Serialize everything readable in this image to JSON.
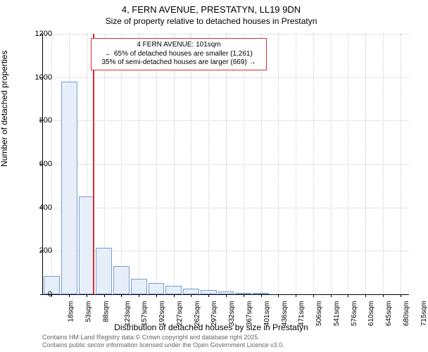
{
  "title": "4, FERN AVENUE, PRESTATYN, LL19 9DN",
  "subtitle": "Size of property relative to detached houses in Prestatyn",
  "chart": {
    "type": "histogram",
    "ylabel": "Number of detached properties",
    "xlabel": "Distribution of detached houses by size in Prestatyn",
    "ylim": [
      0,
      1200
    ],
    "ytick_step": 200,
    "yticks": [
      0,
      200,
      400,
      600,
      800,
      1000,
      1200
    ],
    "x_categories": [
      "18sqm",
      "53sqm",
      "88sqm",
      "123sqm",
      "157sqm",
      "192sqm",
      "227sqm",
      "262sqm",
      "297sqm",
      "332sqm",
      "367sqm",
      "401sqm",
      "436sqm",
      "471sqm",
      "506sqm",
      "541sqm",
      "576sqm",
      "610sqm",
      "645sqm",
      "680sqm",
      "715sqm"
    ],
    "bar_values": [
      85,
      978,
      450,
      215,
      130,
      70,
      52,
      38,
      26,
      18,
      12,
      8,
      5,
      0,
      0,
      0,
      0,
      0,
      0,
      0,
      0
    ],
    "bar_fill": "#e6eef9",
    "bar_stroke": "#7a9fd4",
    "grid_color": "#cccccc",
    "background_color": "#ffffff",
    "refline_color": "#d72f2f",
    "refline_x_index": 2.38,
    "annot_lines": [
      "4 FERN AVENUE: 101sqm",
      "← 65% of detached houses are smaller (1,261)",
      "35% of semi-detached houses are larger (669) →"
    ],
    "title_fontsize": 13,
    "label_fontsize": 12,
    "tick_fontsize": 11
  },
  "footer": {
    "line1": "Contains HM Land Registry data © Crown copyright and database right 2025.",
    "line2": "Contains public sector information licensed under the Open Government Licence v3.0."
  }
}
